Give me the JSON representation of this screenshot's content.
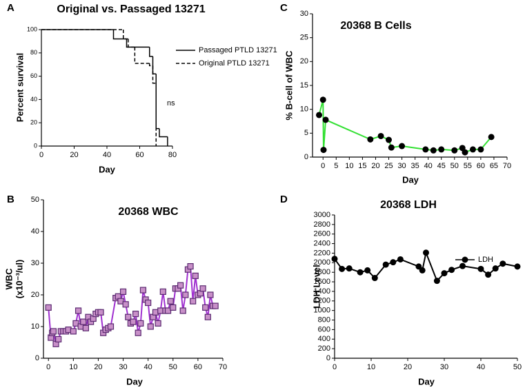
{
  "chart_data": [
    {
      "type": "step",
      "panel_label": "A",
      "title": "Original vs. Passaged 13271",
      "xlabel": "Day",
      "ylabel": "Percent survival",
      "xlim": [
        0,
        80
      ],
      "xticks": [
        0,
        20,
        40,
        60,
        80
      ],
      "ylim": [
        0,
        100
      ],
      "yticks": [
        0,
        20,
        40,
        60,
        80,
        100
      ],
      "annotation": "ns",
      "series": [
        {
          "name": "Passaged PTLD 13271",
          "color": "#000000",
          "style": "solid",
          "x": [
            0,
            44,
            52,
            66,
            68,
            70,
            72,
            77
          ],
          "values": [
            100,
            92,
            85,
            77,
            62,
            15,
            8,
            0
          ]
        },
        {
          "name": "Original PTLD 13271",
          "color": "#000000",
          "style": "dashed",
          "x": [
            0,
            50,
            53,
            57,
            66,
            68,
            70
          ],
          "values": [
            100,
            92,
            85,
            71,
            69,
            54,
            0
          ]
        }
      ]
    },
    {
      "type": "line",
      "panel_label": "B",
      "title": "20368 WBC",
      "xlabel": "Day",
      "ylabel": [
        "WBC",
        "(x10⁻³/ul)"
      ],
      "xlim": [
        -2,
        70
      ],
      "xticks": [
        0,
        10,
        20,
        30,
        40,
        50,
        60,
        70
      ],
      "ylim": [
        0,
        50
      ],
      "yticks": [
        0,
        10,
        20,
        30,
        40,
        50
      ],
      "series": [
        {
          "color": "#a030d0",
          "marker": "square",
          "marker_color": "#c890c8",
          "x": [
            0,
            1,
            1.5,
            2,
            3,
            4,
            5,
            6,
            7,
            8,
            10,
            11,
            12,
            13,
            14,
            15,
            16,
            17,
            18,
            19,
            20,
            21,
            22,
            23,
            24,
            25,
            27,
            28,
            29,
            30,
            31,
            32,
            33,
            34,
            35,
            36,
            37,
            38,
            39,
            40,
            41,
            42,
            43,
            44,
            45,
            46,
            47,
            48,
            49,
            50,
            51,
            52,
            53,
            54,
            55,
            56,
            57,
            58,
            59,
            60,
            61,
            62,
            63,
            64,
            65,
            66,
            67
          ],
          "values": [
            16,
            6.5,
            8,
            8.5,
            4.5,
            6,
            8.5,
            8.5,
            8.5,
            9,
            8.5,
            11,
            15,
            10,
            11.5,
            9.5,
            13,
            11.5,
            12.5,
            14,
            14.5,
            14.5,
            8,
            9,
            9.5,
            10,
            19,
            19.5,
            18,
            21,
            17,
            13,
            11,
            11.5,
            14,
            8,
            11,
            21.5,
            18.5,
            17.5,
            10,
            13,
            14.5,
            11,
            15,
            21,
            15,
            15,
            18,
            16,
            22,
            22,
            23,
            15,
            20,
            28,
            29,
            18,
            26,
            20,
            20.5,
            22,
            16,
            13,
            20,
            16.5,
            16.5
          ]
        }
      ]
    },
    {
      "type": "line",
      "panel_label": "C",
      "title": "20368 B Cells",
      "xlabel": "Day",
      "ylabel": "% B-cell of WBC",
      "xlim": [
        -4,
        70
      ],
      "xticks": [
        0,
        5,
        10,
        15,
        20,
        25,
        30,
        35,
        40,
        45,
        50,
        55,
        60,
        65,
        70
      ],
      "ylim": [
        0,
        30
      ],
      "yticks": [
        0,
        5,
        10,
        15,
        20,
        25,
        30
      ],
      "series": [
        {
          "color": "#33e033",
          "marker": "circle",
          "marker_color": "#000000",
          "x": [
            -1.5,
            0,
            0.2,
            1,
            18,
            22,
            25,
            26,
            30,
            39,
            42,
            45,
            50,
            53,
            54,
            57,
            60,
            64
          ],
          "values": [
            8.8,
            12,
            1.5,
            7.8,
            3.7,
            4.4,
            3.6,
            2,
            2.3,
            1.6,
            1.4,
            1.6,
            1.4,
            1.9,
            1.0,
            1.6,
            1.6,
            4.2
          ]
        }
      ]
    },
    {
      "type": "line",
      "panel_label": "D",
      "title": "20368 LDH",
      "xlabel": "Day",
      "ylabel": "LDH Level",
      "xlim": [
        0,
        50
      ],
      "xticks": [
        0,
        10,
        20,
        30,
        40,
        50
      ],
      "ylim": [
        0,
        3000
      ],
      "yticks": [
        0,
        200,
        400,
        600,
        800,
        1000,
        1200,
        1400,
        1600,
        1800,
        2000,
        2200,
        2400,
        2600,
        2800,
        3000
      ],
      "legend": "upper right",
      "series": [
        {
          "name": "LDH",
          "color": "#000000",
          "marker": "circle",
          "marker_color": "#000000",
          "x": [
            0,
            2,
            4,
            7,
            9,
            11,
            14,
            16,
            18,
            23,
            24,
            25,
            28,
            30,
            32,
            35,
            40,
            42,
            44,
            46,
            50
          ],
          "values": [
            2080,
            1870,
            1880,
            1800,
            1840,
            1680,
            1960,
            2010,
            2070,
            1920,
            1840,
            2210,
            1620,
            1780,
            1850,
            1930,
            1870,
            1750,
            1880,
            1980,
            1920
          ]
        }
      ]
    }
  ]
}
